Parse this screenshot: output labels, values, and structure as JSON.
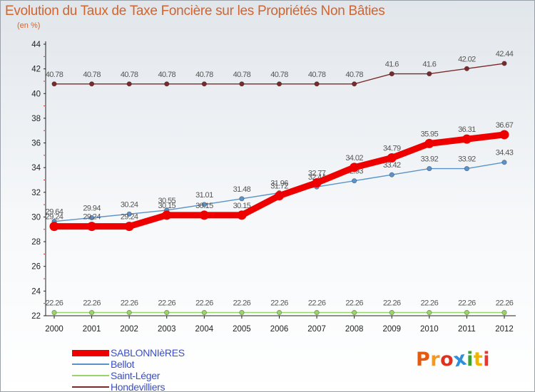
{
  "title": "Evolution du Taux de Taxe Foncière sur les Propriétés Non Bâties",
  "subtitle": "(en %)",
  "logo": {
    "text": "Proxiti",
    "colors": [
      "#e65a10",
      "#f39a1c",
      "#e03020",
      "#2f8fd8",
      "#3aa334",
      "#f0b400",
      "#e5382f"
    ]
  },
  "chart_data": {
    "type": "line",
    "title": "Evolution du Taux de Taxe Foncière sur les Propriétés Non Bâties",
    "ylabel": "(en %)",
    "xlabel": "",
    "x": [
      "2000",
      "2001",
      "2002",
      "2003",
      "2004",
      "2005",
      "2006",
      "2007",
      "2008",
      "2009",
      "2010",
      "2011",
      "2012"
    ],
    "ylim": [
      22,
      44
    ],
    "yticks": [
      "22",
      "24",
      "26",
      "28",
      "30",
      "32",
      "34",
      "36",
      "38",
      "40",
      "42",
      "44"
    ],
    "series": [
      {
        "name": "Hondevilliers",
        "color": "#7a2a2a",
        "values": [
          40.78,
          40.78,
          40.78,
          40.78,
          40.78,
          40.78,
          40.78,
          40.78,
          40.78,
          41.6,
          41.6,
          42.02,
          42.44
        ],
        "labels": [
          "40.78",
          "40.78",
          "40.78",
          "40.78",
          "40.78",
          "40.78",
          "40.78",
          "40.78",
          "40.78",
          "41.6",
          "41.6",
          "42.02",
          "42.44"
        ]
      },
      {
        "name": "Saint-Léger",
        "color": "#9bd46a",
        "values": [
          22.26,
          22.26,
          22.26,
          22.26,
          22.26,
          22.26,
          22.26,
          22.26,
          22.26,
          22.26,
          22.26,
          22.26,
          22.26
        ],
        "labels": [
          "22.26",
          "22.26",
          "22.26",
          "22.26",
          "22.26",
          "22.26",
          "22.26",
          "22.26",
          "22.26",
          "22.26",
          "22.26",
          "22.26",
          "22.26"
        ]
      },
      {
        "name": "Bellot",
        "color": "#5b93c8",
        "values": [
          29.64,
          29.94,
          30.24,
          30.55,
          31.01,
          31.48,
          31.96,
          32.44,
          32.93,
          33.42,
          33.92,
          33.92,
          34.43
        ],
        "labels": [
          "29.64",
          "29.94",
          "30.24",
          "30.55",
          "31.01",
          "31.48",
          "31.96",
          "32.44",
          "32.93",
          "33.42",
          "33.92",
          "33.92",
          "34.43"
        ]
      },
      {
        "name": "SABLONNIèRES",
        "color": "#ee0000",
        "values": [
          29.24,
          29.24,
          29.24,
          30.15,
          30.15,
          30.15,
          31.72,
          32.77,
          34.02,
          34.79,
          35.95,
          36.31,
          36.67
        ],
        "labels": [
          "29.24",
          "29.24",
          "29.24",
          "30.15",
          "30.15",
          "30.15",
          "31.72",
          "32.77",
          "34.02",
          "34.79",
          "35.95",
          "36.31",
          "36.67"
        ]
      }
    ],
    "legend": [
      {
        "name": "SABLONNIèRES",
        "color": "#ee0000"
      },
      {
        "name": "Bellot",
        "color": "#5b93c8"
      },
      {
        "name": "Saint-Léger",
        "color": "#9bd46a"
      },
      {
        "name": "Hondevilliers",
        "color": "#7a2a2a"
      }
    ],
    "legend_position": "bottom-left",
    "grid": false
  }
}
